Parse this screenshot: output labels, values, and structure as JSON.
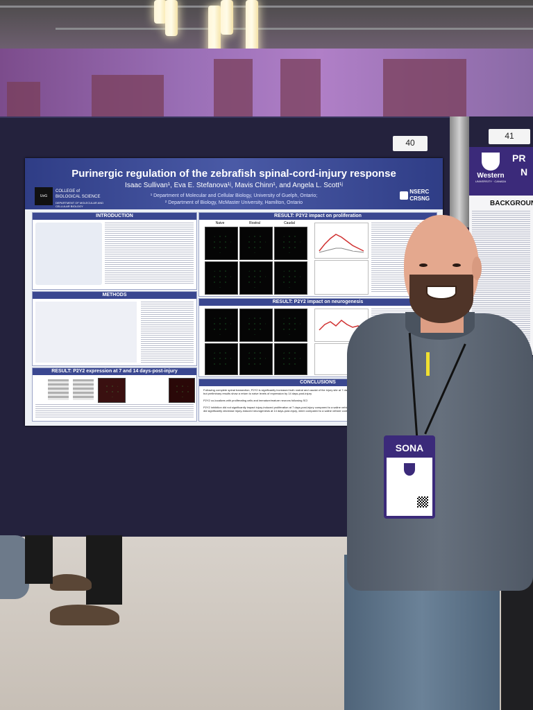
{
  "scene": {
    "board_labels": [
      "40",
      "41"
    ]
  },
  "poster": {
    "title": "Purinergic regulation of the zebrafish spinal-cord-injury response",
    "authors": "Isaac Sullivan¹, Eva E. Stefanova¹ʲ, Mavis Chinn¹, and Angela L. Scott¹ʲ",
    "affiliation_1": "¹ Department of Molecular and Cellular Biology, University of Guelph, Ontario;",
    "affiliation_2": "² Department of Biology, McMaster University, Hamilton, Ontario",
    "logo_left": "COLLEGE of BIOLOGICAL SCIENCE",
    "logo_left_sub": "DEPARTMENT OF MOLECULAR AND CELLULAR BIOLOGY",
    "logo_right": "NSERC CRSNG",
    "sections": {
      "introduction": "INTRODUCTION",
      "methods": "METHODS",
      "expression": "RESULT: P2Y2 expression at 7 and 14 days-post-injury",
      "proliferation": "RESULT: P2Y2 impact on proliferation",
      "neurogenesis": "RESULT: P2Y2 impact on neurogenesis",
      "conclusions": "CONCLUSIONS"
    },
    "conclusion_1": "Following complete spinal transection, P2Y2 is significantly increased both rostral and caudal of the injury site at 7 days-post-injury but preliminary results show a return to naive levels of expression by 14 days-post-injury",
    "conclusion_2": "P2Y2 co-localizes with proliferating cells and immature/mature neurons following SCI",
    "conclusion_3": "P2Y2 inhibition did not significantly impact injury-induced proliferation at 7 days-post-injury compared to a saline vehicle control but did significantly decrease injury-induced neurogenesis at 14 days-post-injury, when compared to a saline vehicle control.",
    "col_labels": [
      "Naive",
      "Rostral",
      "Caudal"
    ]
  },
  "side_poster": {
    "title_fragment_1": "PR",
    "title_fragment_2": "N",
    "logo": "Western",
    "logo_sub": "UNIVERSITY · CANADA",
    "section": "BACKGROUN"
  },
  "badge": {
    "text": "SONA"
  }
}
